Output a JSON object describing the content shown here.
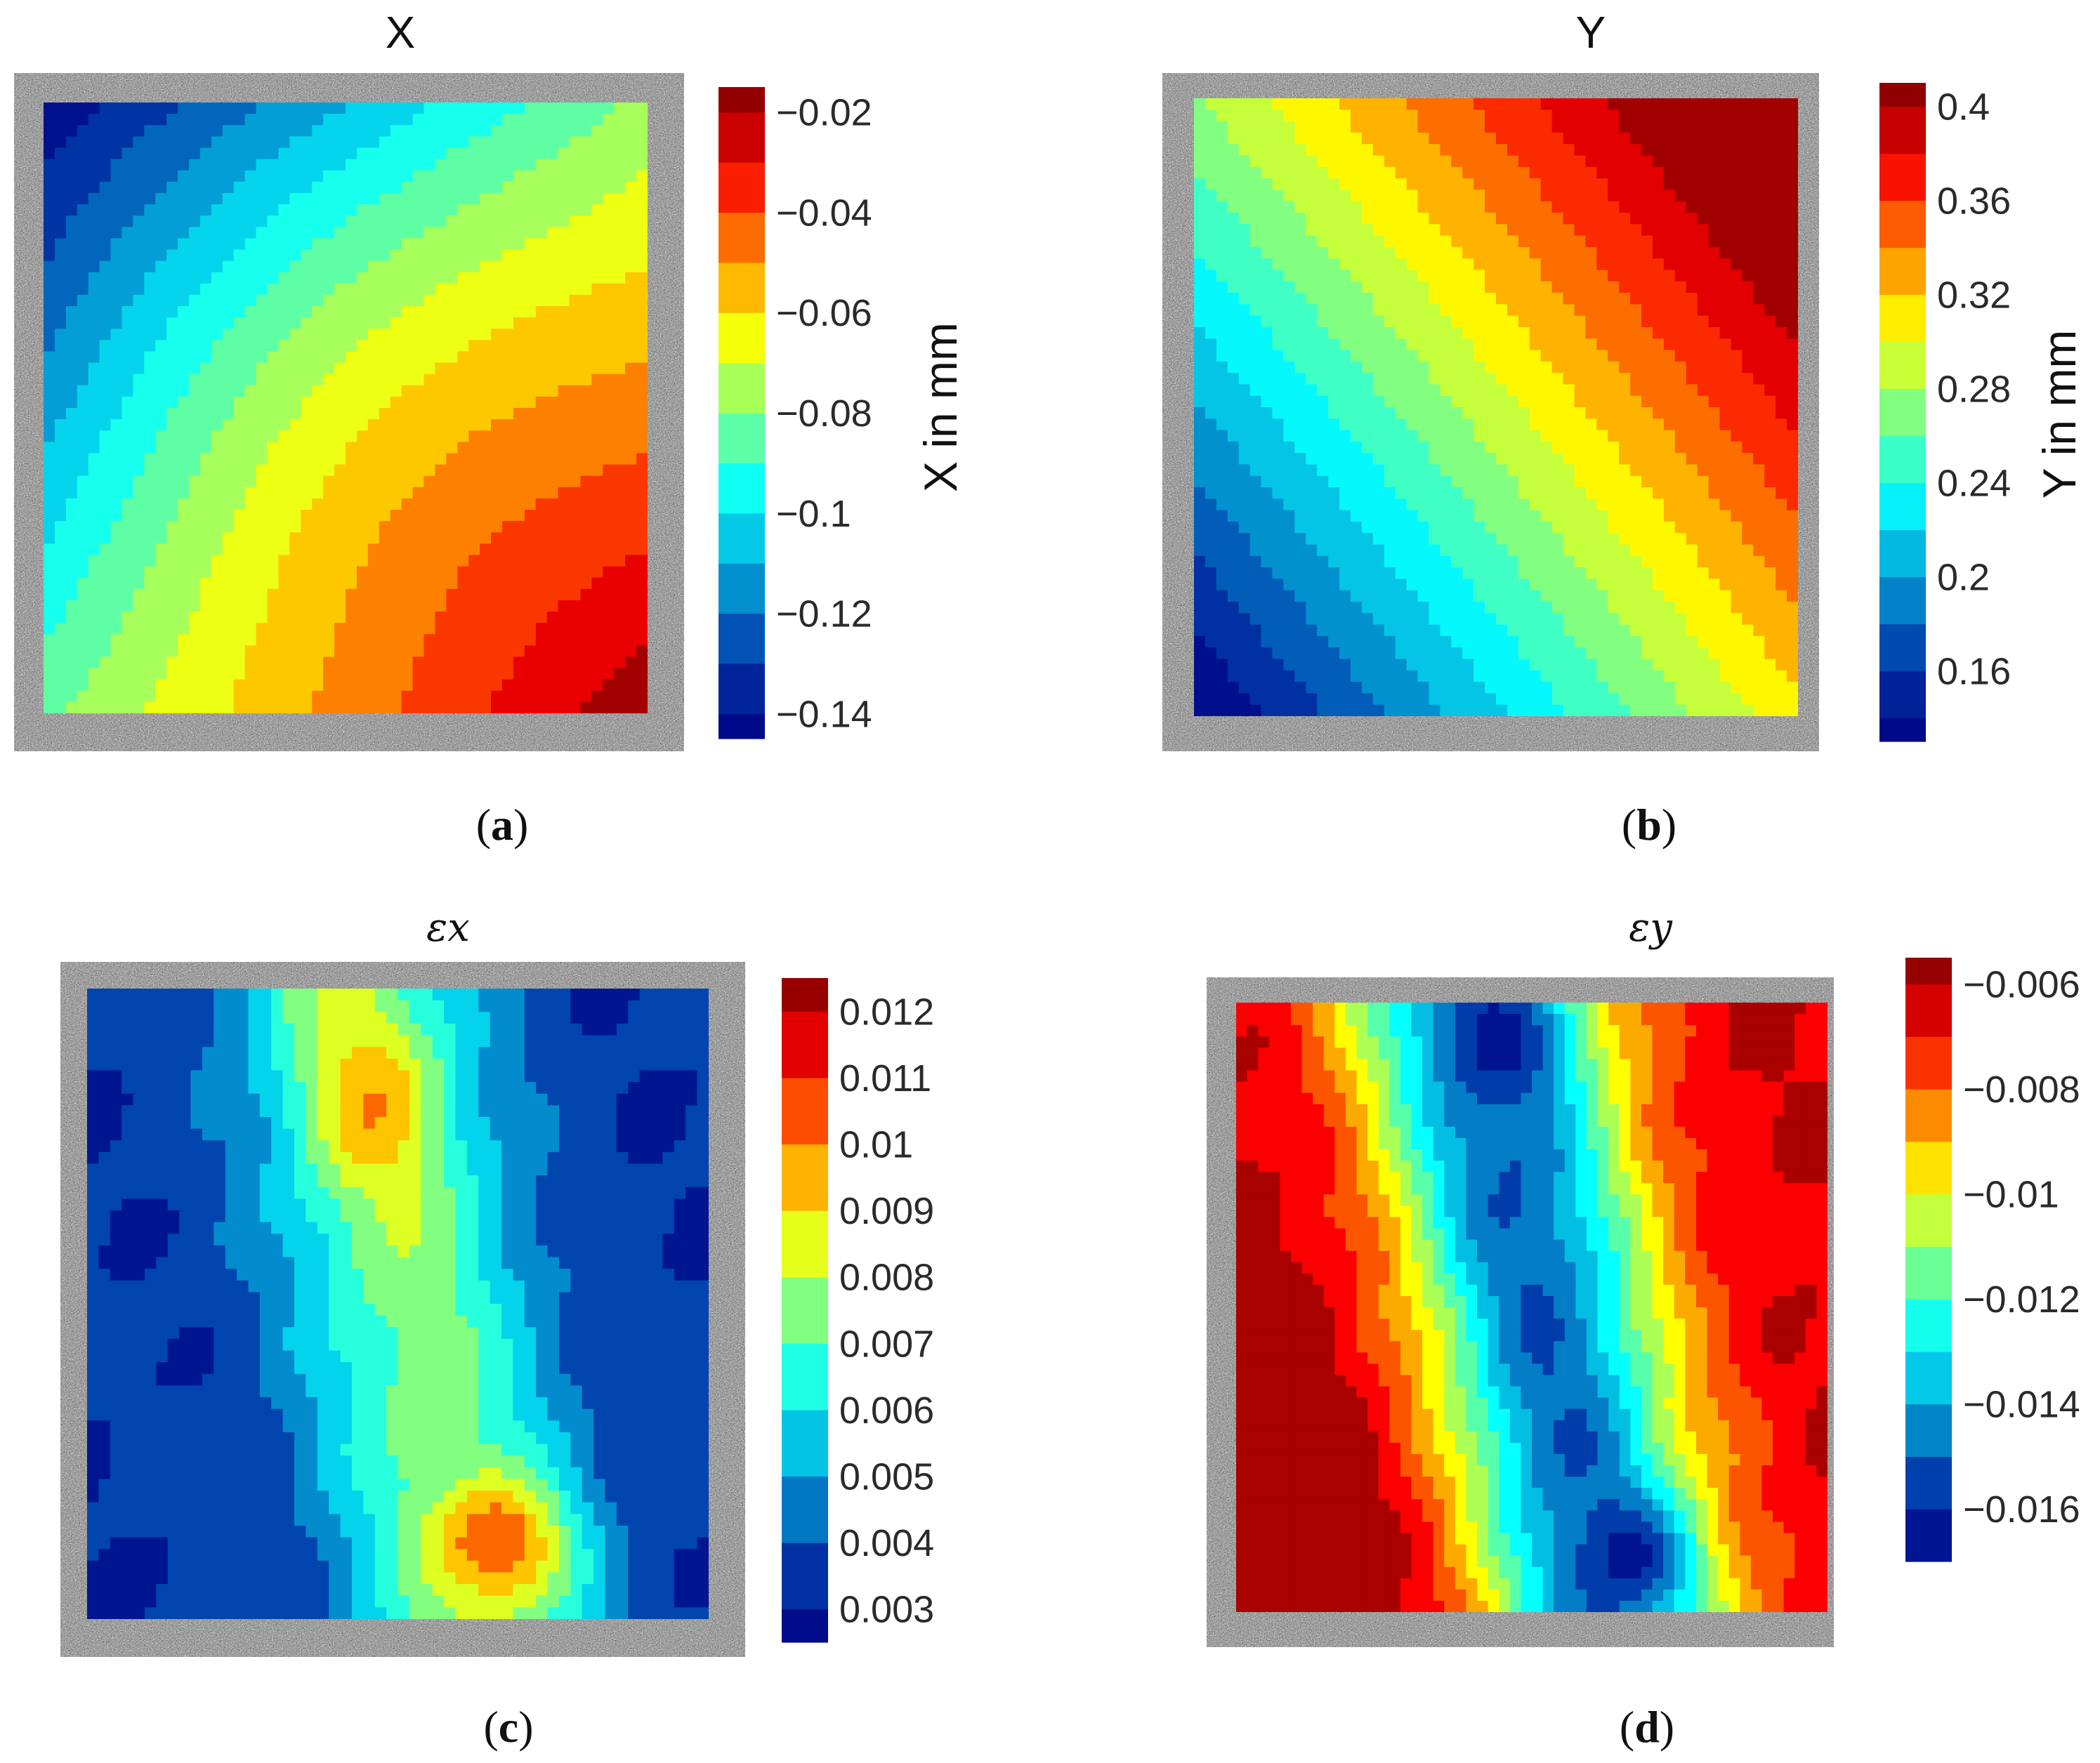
{
  "figure": {
    "panels": [
      {
        "caption_letter": "a",
        "title": "X",
        "colorbar_label": "X in mm"
      },
      {
        "caption_letter": "b",
        "title": "Y",
        "colorbar_label": "Y in mm"
      },
      {
        "caption_letter": "c",
        "title": "εx",
        "colorbar_label": ""
      },
      {
        "caption_letter": "d",
        "title": "εy",
        "colorbar_label": ""
      }
    ]
  },
  "chart_data": [
    {
      "type": "heatmap",
      "subtype": "filled-contour",
      "title": "X",
      "colorbar_label": "X in mm",
      "colorbar_range": [
        -0.145,
        -0.015
      ],
      "colorbar_ticks": [
        "−0.02",
        "−0.04",
        "−0.06",
        "−0.08",
        "−0.1",
        "−0.12",
        "−0.14"
      ],
      "colorbar_tick_values": [
        -0.02,
        -0.04,
        -0.06,
        -0.08,
        -0.1,
        -0.12,
        -0.14
      ],
      "contour_levels": [
        -0.145,
        -0.14,
        -0.13,
        -0.12,
        -0.11,
        -0.1,
        -0.09,
        -0.08,
        -0.07,
        -0.06,
        -0.05,
        -0.04,
        -0.03,
        -0.02,
        -0.015
      ],
      "field_trend": "minimum near top-left, maximum near bottom-right; bands curve from lower-left toward upper-right",
      "caption": "(a)"
    },
    {
      "type": "heatmap",
      "subtype": "filled-contour",
      "title": "Y",
      "colorbar_label": "Y in mm",
      "colorbar_range": [
        0.13,
        0.41
      ],
      "colorbar_ticks": [
        "0.4",
        "0.36",
        "0.32",
        "0.28",
        "0.24",
        "0.2",
        "0.16"
      ],
      "colorbar_tick_values": [
        0.4,
        0.36,
        0.32,
        0.28,
        0.24,
        0.2,
        0.16
      ],
      "contour_levels": [
        0.13,
        0.14,
        0.16,
        0.18,
        0.2,
        0.22,
        0.24,
        0.26,
        0.28,
        0.3,
        0.32,
        0.34,
        0.36,
        0.38,
        0.4,
        0.41
      ],
      "field_trend": "minimum at bottom-left, maximum at top-right; diagonal bands running from upper-left to lower-right",
      "caption": "(b)"
    },
    {
      "type": "heatmap",
      "subtype": "filled-contour",
      "title": "εx",
      "colorbar_label": "",
      "colorbar_range": [
        0.0025,
        0.0125
      ],
      "colorbar_ticks": [
        "0.012",
        "0.011",
        "0.01",
        "0.009",
        "0.008",
        "0.007",
        "0.006",
        "0.005",
        "0.004",
        "0.003"
      ],
      "colorbar_tick_values": [
        0.012,
        0.011,
        0.01,
        0.009,
        0.008,
        0.007,
        0.006,
        0.005,
        0.004,
        0.003
      ],
      "contour_levels": [
        0.0025,
        0.003,
        0.004,
        0.005,
        0.006,
        0.007,
        0.008,
        0.009,
        0.01,
        0.011,
        0.012,
        0.0125
      ],
      "field_trend": "low values along left and right edges; high-strain band through the centre peaking (~0.012) near bottom-centre",
      "caption": "(c)"
    },
    {
      "type": "heatmap",
      "subtype": "filled-contour",
      "title": "εy",
      "colorbar_label": "",
      "colorbar_range": [
        -0.017,
        -0.0055
      ],
      "colorbar_ticks": [
        "−0.006",
        "−0.008",
        "−0.01",
        "−0.012",
        "−0.014",
        "−0.016"
      ],
      "colorbar_tick_values": [
        -0.006,
        -0.008,
        -0.01,
        -0.012,
        -0.014,
        -0.016
      ],
      "contour_levels": [
        -0.017,
        -0.016,
        -0.015,
        -0.014,
        -0.013,
        -0.012,
        -0.011,
        -0.01,
        -0.009,
        -0.008,
        -0.007,
        -0.006,
        -0.0055
      ],
      "field_trend": "highest (least negative) along left edge; lowest (~ -0.016) in a diagonal band from top-centre to bottom-centre-right",
      "caption": "(d)"
    }
  ]
}
